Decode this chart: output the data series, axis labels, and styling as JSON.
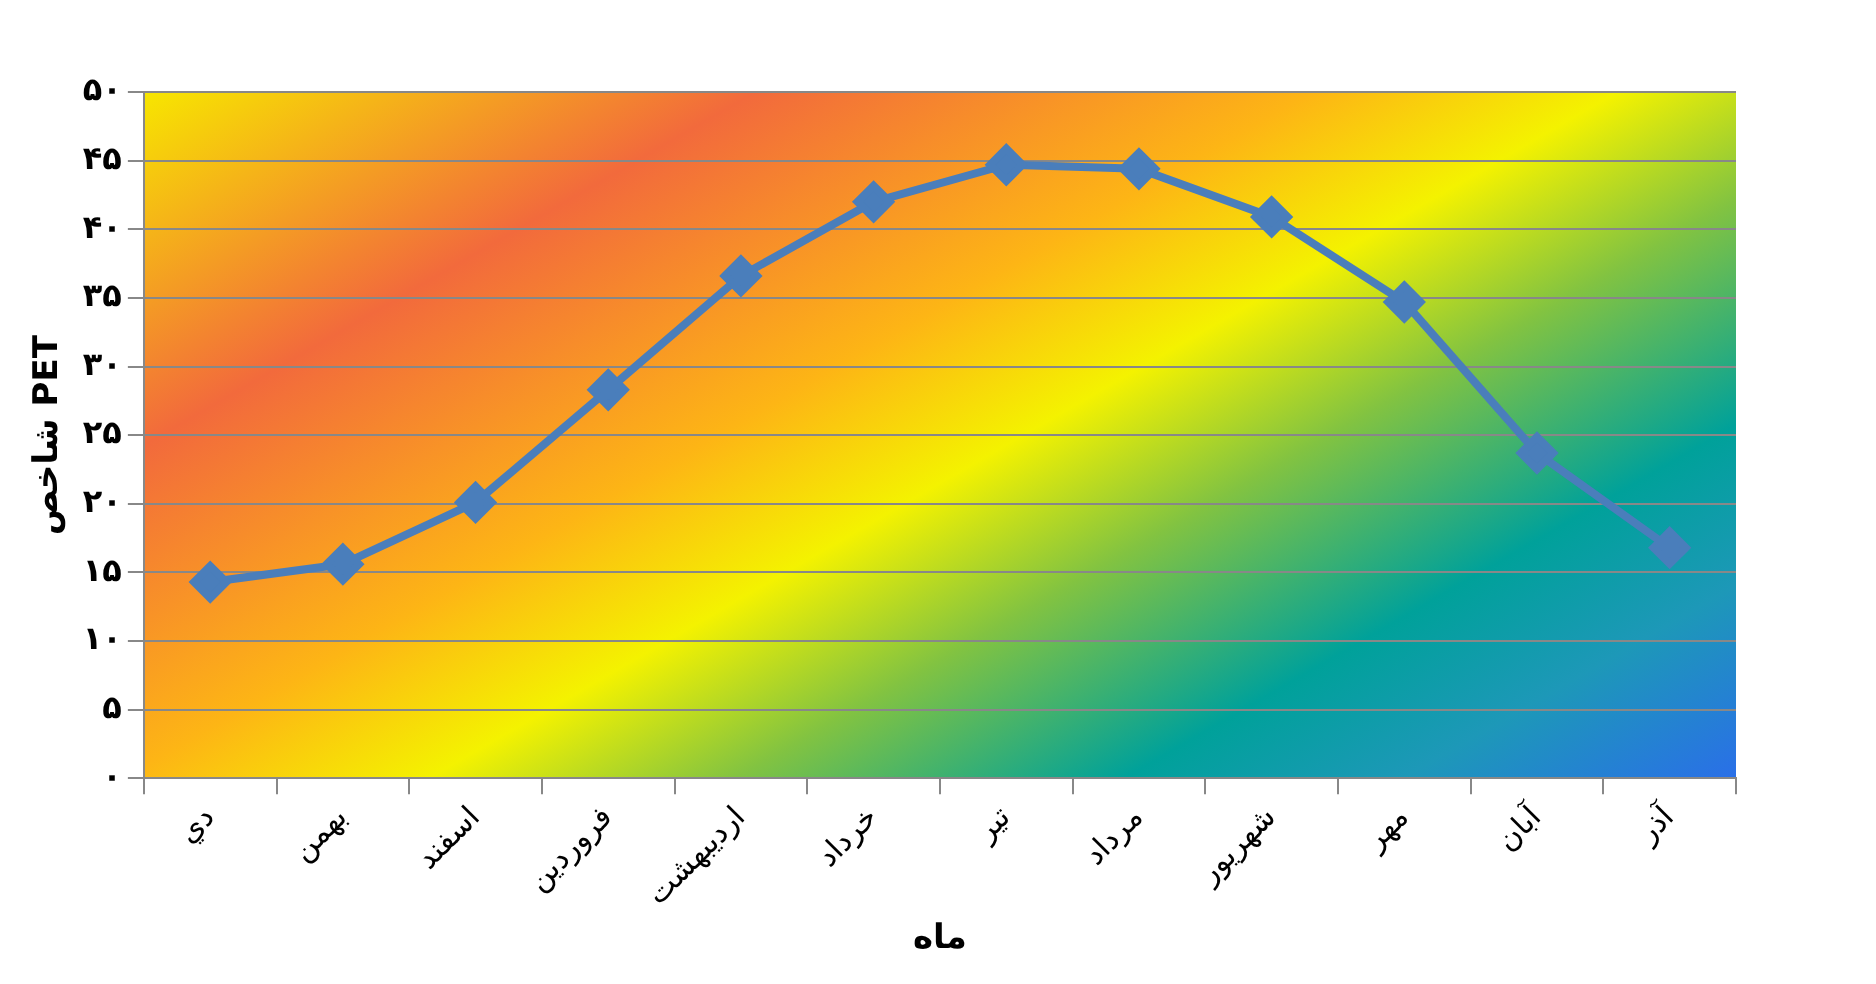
{
  "chart_data": {
    "type": "line",
    "xlabel": "ماه",
    "ylabel": "شاخص PET",
    "categories": [
      "دي",
      "بهمن",
      "اسفند",
      "فروردين",
      "ارديبهشت",
      "خرداد",
      "تير",
      "مرداد",
      "شهريور",
      "مهر",
      "آبان",
      "آذر"
    ],
    "series": [
      {
        "color": "#4a7ebb",
        "values": [
          14.3,
          15.6,
          20.1,
          28.3,
          36.6,
          42.0,
          44.7,
          44.4,
          40.9,
          34.7,
          23.7,
          16.8
        ]
      }
    ],
    "ylim": [
      0,
      50
    ],
    "yticks": [
      {
        "value": 0,
        "label": "۰"
      },
      {
        "value": 5,
        "label": "۵"
      },
      {
        "value": 10,
        "label": "۱۰"
      },
      {
        "value": 15,
        "label": "۱۵"
      },
      {
        "value": 20,
        "label": "۲۰"
      },
      {
        "value": 25,
        "label": "۲۵"
      },
      {
        "value": 30,
        "label": "۳۰"
      },
      {
        "value": 35,
        "label": "۳۵"
      },
      {
        "value": 40,
        "label": "۴۰"
      },
      {
        "value": 45,
        "label": "۴۵"
      },
      {
        "value": 50,
        "label": "۵۰"
      }
    ],
    "grid": "y",
    "marker": "diamond",
    "line_style": "solid",
    "legend": false
  }
}
